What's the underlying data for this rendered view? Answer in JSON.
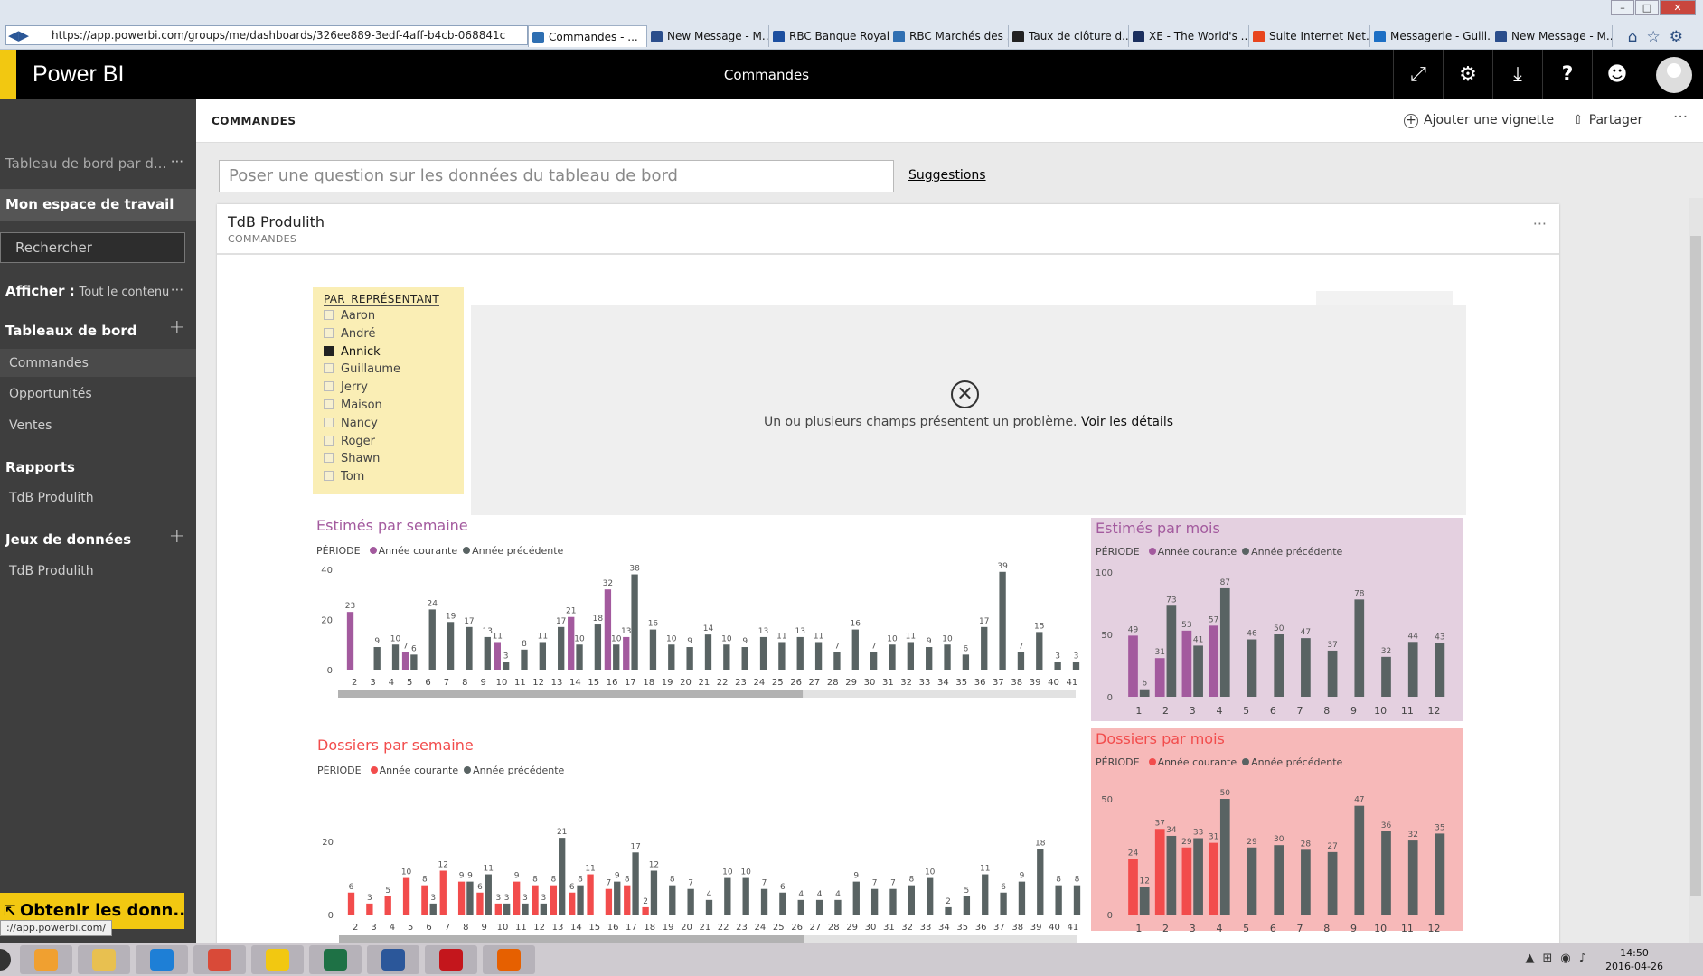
{
  "browser": {
    "url": "https://app.powerbi.com/groups/me/dashboards/326ee889-3edf-4aff-b4cb-068841c",
    "tabs": [
      {
        "label": "Commandes - ...",
        "color": "#2f6fb2",
        "active": true
      },
      {
        "label": "New Message - M...",
        "color": "#2b4e8c"
      },
      {
        "label": "RBC Banque Royale",
        "color": "#1c4fa0"
      },
      {
        "label": "RBC Marchés des ...",
        "color": "#2f6fb2"
      },
      {
        "label": "Taux de clôture d...",
        "color": "#222222"
      },
      {
        "label": "XE - The World's ...",
        "color": "#1b2f5e"
      },
      {
        "label": "Suite Internet Net...",
        "color": "#e8451e"
      },
      {
        "label": "Messagerie - Guill...",
        "color": "#1d6fc4"
      },
      {
        "label": "New Message - M...",
        "color": "#2b4e8c"
      }
    ],
    "window_buttons": [
      "–",
      "□",
      "✕"
    ],
    "right_icons": [
      "home-icon",
      "star-icon",
      "settings-icon"
    ],
    "status_url": "://app.powerbi.com/"
  },
  "app": {
    "brand": "Power BI",
    "center_title": "Commandes",
    "top_icons": [
      "expand-icon",
      "gear-icon",
      "download-icon",
      "help-icon",
      "smiley-icon"
    ]
  },
  "sidebar": {
    "dash_name": "Tableau de bord par d...",
    "workspace": "Mon espace de travail",
    "search_placeholder": "Rechercher",
    "show_label": "Afficher :",
    "show_value": "Tout le contenu",
    "dashboards_header": "Tableaux de bord",
    "dashboards": [
      "Commandes",
      "Opportunités",
      "Ventes"
    ],
    "reports_header": "Rapports",
    "reports": [
      "TdB Produlith"
    ],
    "datasets_header": "Jeux de données",
    "datasets": [
      "TdB Produlith"
    ],
    "get_data": "Obtenir les donn..."
  },
  "header": {
    "title": "COMMANDES",
    "add_tile": "Ajouter une vignette",
    "share": "Partager"
  },
  "qa": {
    "placeholder": "Poser une question sur les données du tableau de bord",
    "suggestions": "Suggestions"
  },
  "tile": {
    "title": "TdB Produlith",
    "subtitle": "COMMANDES"
  },
  "slicer": {
    "header": "PAR_REPRÉSENTANT",
    "items": [
      {
        "label": "Aaron",
        "checked": false
      },
      {
        "label": "André",
        "checked": false
      },
      {
        "label": "Annick",
        "checked": true
      },
      {
        "label": "Guillaume",
        "checked": false
      },
      {
        "label": "Jerry",
        "checked": false
      },
      {
        "label": "Maison",
        "checked": false
      },
      {
        "label": "Nancy",
        "checked": false
      },
      {
        "label": "Roger",
        "checked": false
      },
      {
        "label": "Shawn",
        "checked": false
      },
      {
        "label": "Tom",
        "checked": false
      }
    ]
  },
  "error": {
    "message": "Un ou plusieurs champs présentent un problème.",
    "link": "Voir les détails"
  },
  "legend": {
    "label": "PÉRIODE",
    "current": "Année courante",
    "previous": "Année précédente"
  },
  "colors": {
    "purple": "#a35a9e",
    "red": "#f24c4c",
    "gray": "#596363",
    "yellow": "#f2c811",
    "purple_bg": "#e4d0e0",
    "red_bg": "#f7b9b9"
  },
  "chart_data": [
    {
      "id": "est-semaine",
      "type": "bar",
      "title": "Estimés par semaine",
      "x": [
        "2",
        "3",
        "4",
        "5",
        "6",
        "7",
        "8",
        "9",
        "10",
        "11",
        "12",
        "13",
        "14",
        "15",
        "16",
        "17",
        "18",
        "19",
        "20",
        "21",
        "22",
        "23",
        "24",
        "25",
        "26",
        "27",
        "28",
        "29",
        "30",
        "31",
        "32",
        "33",
        "34",
        "35",
        "36",
        "37",
        "38",
        "39",
        "40",
        "41"
      ],
      "ylim": [
        0,
        40
      ],
      "yticks": [
        0,
        20,
        40
      ],
      "series": [
        {
          "name": "Année courante",
          "values": [
            23,
            0,
            0,
            7,
            0,
            0,
            0,
            0,
            11,
            0,
            0,
            0,
            21,
            0,
            32,
            13,
            0,
            null,
            null,
            null,
            null,
            null,
            null,
            null,
            null,
            null,
            null,
            null,
            null,
            null,
            null,
            null,
            null,
            null,
            null,
            null,
            null,
            null,
            null,
            null
          ]
        },
        {
          "name": "Année précédente",
          "values": [
            0,
            9,
            10,
            6,
            24,
            19,
            17,
            13,
            3,
            8,
            11,
            17,
            10,
            18,
            10,
            38,
            16,
            10,
            9,
            14,
            10,
            9,
            13,
            11,
            13,
            11,
            7,
            16,
            7,
            10,
            11,
            9,
            10,
            6,
            17,
            39,
            7,
            15,
            3,
            3
          ]
        }
      ],
      "labels_current": [
        "23",
        "",
        "",
        "7",
        "",
        "",
        "",
        "",
        "11",
        "",
        "",
        "",
        "21",
        "",
        "32",
        "13",
        "",
        "",
        "",
        "",
        "",
        "",
        "",
        "",
        "",
        "",
        "",
        "",
        "",
        "",
        "",
        "",
        "",
        "",
        "",
        "",
        "",
        "",
        "",
        ""
      ],
      "labels_previous": [
        "",
        "9",
        "10",
        "6",
        "24",
        "19",
        "17",
        "13",
        "3",
        "8",
        "11",
        "17",
        "10",
        "18",
        "10",
        "38",
        "16",
        "10",
        "9",
        "14",
        "10",
        "9",
        "13",
        "11",
        "13",
        "11",
        "7",
        "16",
        "7",
        "10",
        "11",
        "9",
        "10",
        "6",
        "17",
        "39",
        "7",
        "15",
        "3",
        "3"
      ]
    },
    {
      "id": "est-mois",
      "type": "bar",
      "title": "Estimés par mois",
      "x": [
        "1",
        "2",
        "3",
        "4",
        "5",
        "6",
        "7",
        "8",
        "9",
        "10",
        "11",
        "12"
      ],
      "ylim": [
        0,
        100
      ],
      "yticks": [
        0,
        50,
        100
      ],
      "series": [
        {
          "name": "Année courante",
          "values": [
            49,
            31,
            53,
            57,
            null,
            null,
            null,
            null,
            null,
            null,
            null,
            null
          ]
        },
        {
          "name": "Année précédente",
          "values": [
            6,
            73,
            41,
            87,
            46,
            50,
            47,
            37,
            78,
            32,
            44,
            43
          ]
        }
      ]
    },
    {
      "id": "dos-semaine",
      "type": "bar",
      "title": "Dossiers par semaine",
      "x": [
        "2",
        "3",
        "4",
        "5",
        "6",
        "7",
        "8",
        "9",
        "10",
        "11",
        "12",
        "13",
        "14",
        "15",
        "16",
        "17",
        "18",
        "19",
        "20",
        "21",
        "22",
        "23",
        "24",
        "25",
        "26",
        "27",
        "28",
        "29",
        "30",
        "31",
        "32",
        "33",
        "34",
        "35",
        "36",
        "37",
        "38",
        "39",
        "40",
        "41"
      ],
      "ylim": [
        0,
        24
      ],
      "yticks": [
        0,
        20
      ],
      "series": [
        {
          "name": "Année courante",
          "values": [
            6,
            3,
            5,
            10,
            8,
            12,
            9,
            6,
            3,
            9,
            8,
            8,
            6,
            11,
            7,
            8,
            2,
            null,
            null,
            null,
            null,
            null,
            null,
            null,
            null,
            null,
            null,
            null,
            null,
            null,
            null,
            null,
            null,
            null,
            null,
            null,
            null,
            null,
            null,
            null
          ]
        },
        {
          "name": "Année précédente",
          "values": [
            0,
            0,
            0,
            0,
            3,
            0,
            9,
            11,
            3,
            3,
            3,
            21,
            8,
            0,
            9,
            17,
            12,
            8,
            7,
            4,
            10,
            10,
            7,
            6,
            4,
            4,
            4,
            9,
            7,
            7,
            8,
            10,
            2,
            5,
            11,
            6,
            9,
            18,
            8,
            8
          ]
        }
      ],
      "labels_current": [
        "6",
        "3",
        "5",
        "10",
        "8",
        "12",
        "9",
        "6",
        "3",
        "9",
        "8",
        "8",
        "6",
        "11",
        "7",
        "8",
        "2",
        "",
        "",
        "",
        "",
        "",
        "",
        "",
        "",
        "",
        "",
        "",
        "",
        "",
        "",
        "",
        "",
        "",
        "",
        "",
        "",
        "",
        "",
        ""
      ],
      "labels_previous": [
        "",
        "",
        "",
        "",
        "3",
        "",
        "9",
        "11",
        "3",
        "3",
        "3",
        "21",
        "8",
        "",
        "9",
        "17",
        "12",
        "8",
        "7",
        "4",
        "10",
        "10",
        "7",
        "6",
        "4",
        "4",
        "4",
        "9",
        "7",
        "7",
        "8",
        "10",
        "2",
        "5",
        "11",
        "6",
        "9",
        "18",
        "8",
        "8"
      ]
    },
    {
      "id": "dos-mois",
      "type": "bar",
      "title": "Dossiers par mois",
      "x": [
        "1",
        "2",
        "3",
        "4",
        "5",
        "6",
        "7",
        "8",
        "9",
        "10",
        "11",
        "12"
      ],
      "ylim": [
        0,
        50
      ],
      "yticks": [
        0,
        50
      ],
      "series": [
        {
          "name": "Année courante",
          "values": [
            24,
            37,
            29,
            31,
            null,
            null,
            null,
            null,
            null,
            null,
            null,
            null
          ]
        },
        {
          "name": "Année précédente",
          "values": [
            12,
            34,
            33,
            50,
            29,
            30,
            28,
            27,
            47,
            36,
            32,
            35
          ]
        }
      ]
    }
  ],
  "taskbar": {
    "apps": [
      {
        "name": "outlook-icon",
        "color": "#f0a030"
      },
      {
        "name": "explorer-icon",
        "color": "#e8c050"
      },
      {
        "name": "ie-icon",
        "color": "#1e7fd6"
      },
      {
        "name": "chrome-icon",
        "color": "#d94a38"
      },
      {
        "name": "powerbi-icon",
        "color": "#f2c811"
      },
      {
        "name": "excel-icon",
        "color": "#1e7145"
      },
      {
        "name": "word-icon",
        "color": "#2b579a"
      },
      {
        "name": "acrobat-icon",
        "color": "#c4161c"
      },
      {
        "name": "firefox-icon",
        "color": "#e66000"
      }
    ],
    "time": "14:50",
    "date": "2016-04-26"
  }
}
